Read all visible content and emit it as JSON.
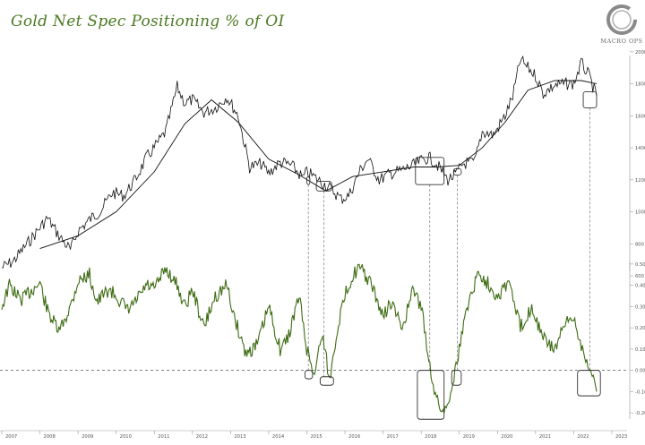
{
  "title": "Gold Net Spec Positioning % of OI",
  "logo": {
    "text": "MACRO OPS"
  },
  "colors": {
    "price": "#111111",
    "positioning": "#3d6b12",
    "title": "#4a7a22",
    "box": "#333333",
    "dashed": "#777777"
  },
  "chart_data": [
    {
      "type": "line",
      "title": "",
      "series": [
        {
          "name": "",
          "x": [
            2007.0,
            2007.3,
            2007.6,
            2008.0,
            2008.2,
            2008.5,
            2008.8,
            2009.0,
            2009.3,
            2009.6,
            2009.9,
            2010.2,
            2010.5,
            2010.8,
            2011.0,
            2011.3,
            2011.6,
            2011.8,
            2012.0,
            2012.3,
            2012.6,
            2012.9,
            2013.2,
            2013.5,
            2013.8,
            2014.0,
            2014.3,
            2014.6,
            2014.9,
            2015.0,
            2015.3,
            2015.6,
            2015.9,
            2016.1,
            2016.4,
            2016.6,
            2016.9,
            2017.2,
            2017.5,
            2017.8,
            2018.0,
            2018.2,
            2018.4,
            2018.7,
            2018.9,
            2019.1,
            2019.4,
            2019.6,
            2019.9,
            2020.2,
            2020.4,
            2020.6,
            2020.8,
            2021.0,
            2021.2,
            2021.5,
            2021.8,
            2022.0,
            2022.2,
            2022.4,
            2022.6
          ],
          "values": [
            650,
            690,
            780,
            900,
            960,
            850,
            760,
            880,
            950,
            1010,
            1120,
            1100,
            1200,
            1340,
            1400,
            1500,
            1780,
            1680,
            1700,
            1620,
            1650,
            1720,
            1600,
            1280,
            1300,
            1240,
            1310,
            1290,
            1210,
            1250,
            1200,
            1150,
            1080,
            1100,
            1260,
            1330,
            1200,
            1240,
            1260,
            1290,
            1320,
            1340,
            1300,
            1200,
            1230,
            1300,
            1310,
            1500,
            1480,
            1600,
            1720,
            1950,
            1900,
            1850,
            1740,
            1790,
            1800,
            1800,
            1930,
            1850,
            1720
          ]
        },
        {
          "name": "",
          "x": [
            2008.0,
            2009.0,
            2010.0,
            2011.0,
            2011.8,
            2012.5,
            2013.2,
            2014.0,
            2014.8,
            2015.5,
            2016.2,
            2017.0,
            2017.8,
            2018.4,
            2019.0,
            2019.6,
            2020.2,
            2020.8,
            2021.5,
            2022.2,
            2022.6
          ],
          "values": [
            770,
            850,
            1000,
            1250,
            1550,
            1700,
            1560,
            1330,
            1230,
            1130,
            1220,
            1250,
            1280,
            1280,
            1290,
            1400,
            1560,
            1760,
            1820,
            1820,
            1800
          ]
        }
      ],
      "ylim": [
        600,
        2100
      ],
      "yticks": [
        "2000",
        "1800",
        "1600",
        "1400",
        "1200",
        "1000",
        "800",
        "600"
      ]
    },
    {
      "type": "line",
      "title": "",
      "series": [
        {
          "name": "",
          "x": [
            2007.0,
            2007.2,
            2007.5,
            2007.8,
            2008.0,
            2008.2,
            2008.5,
            2008.8,
            2009.0,
            2009.3,
            2009.5,
            2009.8,
            2010.0,
            2010.3,
            2010.5,
            2010.8,
            2011.0,
            2011.3,
            2011.6,
            2011.8,
            2012.0,
            2012.3,
            2012.6,
            2012.9,
            2013.1,
            2013.4,
            2013.7,
            2014.0,
            2014.3,
            2014.5,
            2014.8,
            2015.0,
            2015.2,
            2015.4,
            2015.6,
            2015.8,
            2016.0,
            2016.2,
            2016.4,
            2016.7,
            2017.0,
            2017.2,
            2017.5,
            2017.8,
            2018.0,
            2018.2,
            2018.4,
            2018.6,
            2018.8,
            2019.0,
            2019.2,
            2019.5,
            2019.8,
            2020.0,
            2020.3,
            2020.6,
            2020.9,
            2021.2,
            2021.5,
            2021.8,
            2022.0,
            2022.2,
            2022.4,
            2022.6
          ],
          "values": [
            0.3,
            0.4,
            0.33,
            0.38,
            0.41,
            0.28,
            0.18,
            0.3,
            0.42,
            0.45,
            0.32,
            0.38,
            0.35,
            0.28,
            0.32,
            0.4,
            0.38,
            0.48,
            0.4,
            0.3,
            0.38,
            0.2,
            0.35,
            0.4,
            0.25,
            0.08,
            0.12,
            0.3,
            0.1,
            0.15,
            0.35,
            0.1,
            -0.02,
            0.18,
            -0.05,
            0.2,
            0.35,
            0.45,
            0.48,
            0.4,
            0.25,
            0.32,
            0.2,
            0.38,
            0.3,
            0.05,
            -0.14,
            -0.2,
            -0.08,
            0.1,
            0.3,
            0.46,
            0.4,
            0.35,
            0.42,
            0.2,
            0.3,
            0.15,
            0.1,
            0.22,
            0.25,
            0.12,
            0.02,
            -0.1
          ]
        }
      ],
      "ylim": [
        -0.25,
        0.55
      ],
      "yticks": [
        "0.50",
        "0.40",
        "0.30",
        "0.20",
        "0.10",
        "0.00",
        "-0.10",
        "-0.20"
      ],
      "reference_line": 0.0
    }
  ],
  "x_axis": {
    "ticks": [
      "2007",
      "2008",
      "2009",
      "2010",
      "2011",
      "2012",
      "2013",
      "2014",
      "2015",
      "2016",
      "2017",
      "2018",
      "2019",
      "2020",
      "2021",
      "2022",
      "2023"
    ]
  },
  "highlights": [
    {
      "price_x": [
        2015.0,
        2015.08
      ],
      "price_y": [
        1220,
        1170
      ],
      "pos_x": [
        2014.95,
        2015.15
      ],
      "pos_y": [
        0.0,
        -0.04
      ]
    },
    {
      "price_x": [
        2015.25,
        2015.65
      ],
      "price_y": [
        1190,
        1130
      ],
      "pos_x": [
        2015.35,
        2015.7
      ],
      "pos_y": [
        -0.03,
        -0.07
      ]
    },
    {
      "price_x": [
        2017.85,
        2018.6
      ],
      "price_y": [
        1340,
        1170
      ],
      "pos_x": [
        2017.9,
        2018.6
      ],
      "pos_y": [
        0.0,
        -0.23
      ]
    },
    {
      "price_x": [
        2018.85,
        2019.05
      ],
      "price_y": [
        1270,
        1230
      ],
      "pos_x": [
        2018.8,
        2019.05
      ],
      "pos_y": [
        0.0,
        -0.07
      ]
    },
    {
      "price_x": [
        2022.25,
        2022.6
      ],
      "price_y": [
        1750,
        1650
      ],
      "pos_x": [
        2022.1,
        2022.7
      ],
      "pos_y": [
        0.0,
        -0.12
      ]
    }
  ]
}
